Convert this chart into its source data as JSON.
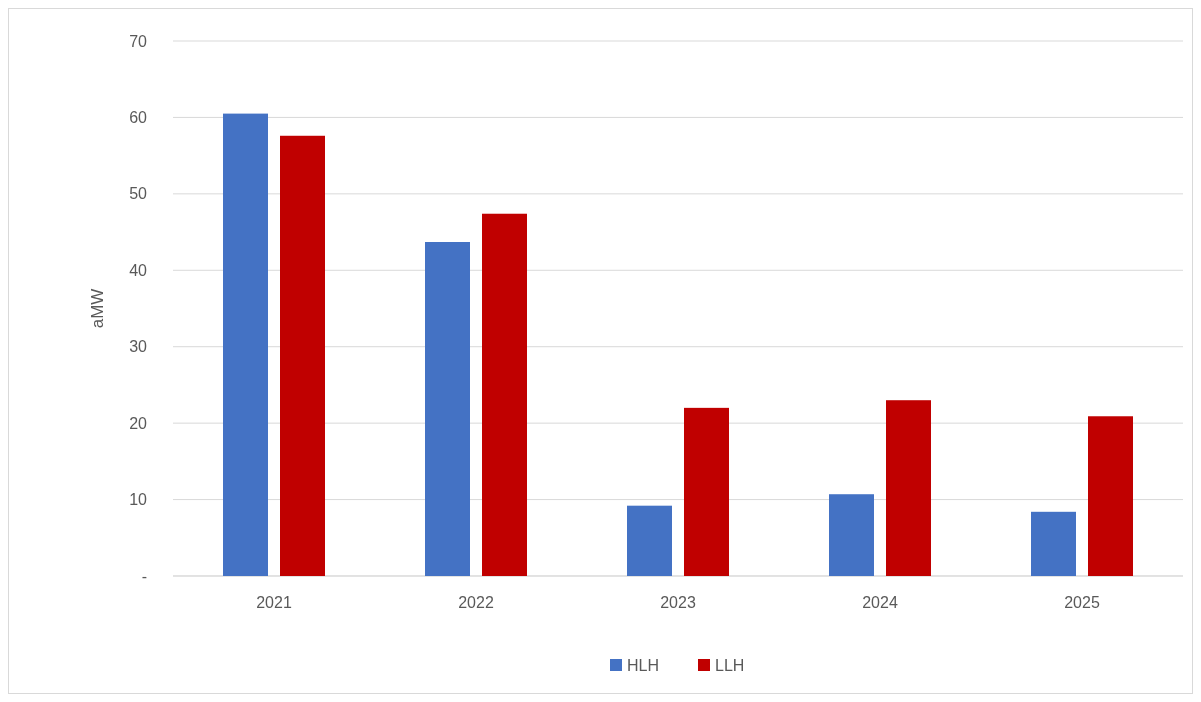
{
  "chart_data": {
    "type": "bar",
    "ylabel": "aMW",
    "categories": [
      "2021",
      "2022",
      "2023",
      "2024",
      "2025"
    ],
    "series": [
      {
        "name": "HLH",
        "color": "#4472c4",
        "values": [
          60.5,
          43.7,
          9.2,
          10.7,
          8.4
        ]
      },
      {
        "name": "LLH",
        "color": "#c00000",
        "values": [
          57.6,
          47.4,
          22.0,
          23.0,
          20.9
        ]
      }
    ],
    "ylim": [
      0,
      70
    ],
    "yticks": [
      {
        "value": 0,
        "label": "-"
      },
      10,
      20,
      30,
      40,
      50,
      60,
      70
    ],
    "grid": "y",
    "legend": "bottom"
  }
}
